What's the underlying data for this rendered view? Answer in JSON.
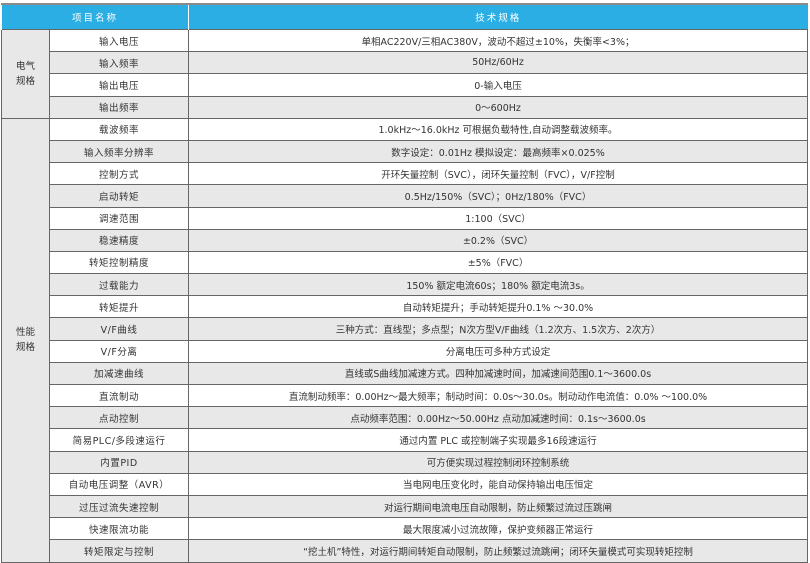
{
  "header": {
    "name_col": "项目名称",
    "spec_col": "技术规格"
  },
  "groups": [
    {
      "label": "电气\n规格",
      "rows": [
        {
          "name": "输入电压",
          "spec": "单相AC220V/三相AC380V，波动不超过±10%，失衡率<3%；"
        },
        {
          "name": "输入频率",
          "spec": "50Hz/60Hz"
        },
        {
          "name": "输出电压",
          "spec": "0-输入电压"
        },
        {
          "name": "输出频率",
          "spec": "0～600Hz"
        }
      ]
    },
    {
      "label": "性能\n规格",
      "rows": [
        {
          "name": "载波频率",
          "spec": "1.0kHz～16.0kHz 可根据负载特性,自动调整载波频率。"
        },
        {
          "name": "输入频率分辨率",
          "spec": "数字设定：0.01Hz 模拟设定：最高频率×0.025%"
        },
        {
          "name": "控制方式",
          "spec": "开环矢量控制（SVC），闭环矢量控制（FVC），V/F控制"
        },
        {
          "name": "启动转矩",
          "spec": "0.5Hz/150%（SVC）；0Hz/180%（FVC）"
        },
        {
          "name": "调速范围",
          "spec": "1:100（SVC）"
        },
        {
          "name": "稳速精度",
          "spec": "±0.2%（SVC）"
        },
        {
          "name": "转矩控制精度",
          "spec": "±5%（FVC）"
        },
        {
          "name": "过载能力",
          "spec": "150% 额定电流60s；180% 额定电流3s。"
        },
        {
          "name": "转矩提升",
          "spec": "自动转矩提升；手动转矩提升0.1% ～30.0%"
        },
        {
          "name": "V/F曲线",
          "spec": "三种方式：直线型；多点型；N次方型V/F曲线（1.2次方、1.5次方、2次方）"
        },
        {
          "name": "V/F分离",
          "spec": "分离电压可多种方式设定"
        },
        {
          "name": "加减速曲线",
          "spec": "直线或S曲线加减速方式。四种加减速时间，加减速间范围0.1～3600.0s"
        },
        {
          "name": "直流制动",
          "spec": "直流制动频率：0.00Hz～最大频率；制动时间：0.0s～30.0s。制动动作电流值：0.0% ～100.0%"
        },
        {
          "name": "点动控制",
          "spec": "点动频率范围：0.00Hz～50.00Hz 点动加减速时间：0.1s～3600.0s"
        },
        {
          "name": "简易PLC/多段速运行",
          "spec": "通过内置 PLC 或控制端子实现最多16段速运行"
        },
        {
          "name": "内置PID",
          "spec": "可方便实现过程控制闭环控制系统"
        },
        {
          "name": "自动电压调整（AVR）",
          "spec": "当电网电压变化时，能自动保持输出电压恒定"
        },
        {
          "name": "过压过流失速控制",
          "spec": "对运行期间电流电压自动限制，防止频繁过流过压跳闸"
        },
        {
          "name": "快速限流功能",
          "spec": "最大限度减小过流故障，保护变频器正常运行"
        },
        {
          "name": "转矩限定与控制",
          "spec": "“挖土机”特性，对运行期间转矩自动限制，防止频繁过流跳闸；闭环矢量模式可实现转矩控制"
        }
      ]
    }
  ]
}
